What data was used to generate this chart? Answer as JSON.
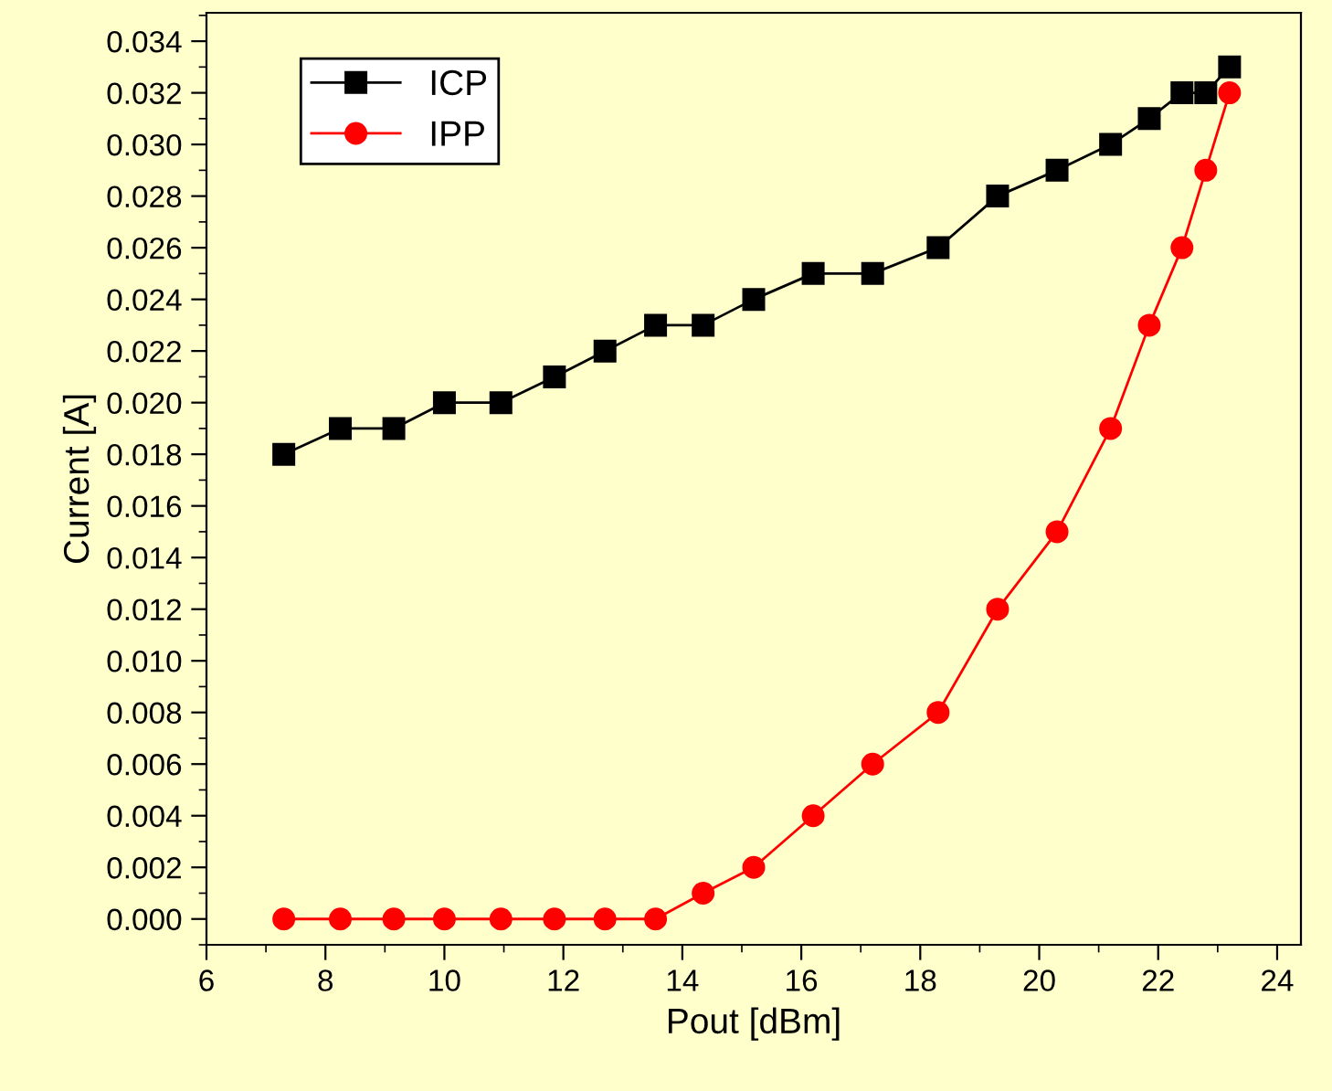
{
  "chart_data": {
    "type": "line",
    "xlabel": "Pout [dBm]",
    "ylabel": "Current [A]",
    "x": [
      7.3,
      8.25,
      9.15,
      10.0,
      10.95,
      11.85,
      12.7,
      13.55,
      14.35,
      15.2,
      16.2,
      17.2,
      18.3,
      19.3,
      20.3,
      21.2,
      21.85,
      22.4,
      22.8,
      23.2
    ],
    "series": [
      {
        "name": "ICP",
        "color": "#000000",
        "marker": "square",
        "values": [
          0.018,
          0.019,
          0.019,
          0.02,
          0.02,
          0.021,
          0.022,
          0.023,
          0.023,
          0.024,
          0.025,
          0.025,
          0.026,
          0.028,
          0.029,
          0.03,
          0.031,
          0.032,
          0.032,
          0.033
        ]
      },
      {
        "name": "IPP",
        "color": "#ff0000",
        "marker": "circle",
        "values": [
          0,
          0,
          0,
          0,
          0,
          0,
          0,
          0,
          0.001,
          0.002,
          0.004,
          0.006,
          0.008,
          0.012,
          0.015,
          0.019,
          0.023,
          0.026,
          0.029,
          0.032
        ]
      }
    ],
    "xlim": [
      6,
      24.4
    ],
    "xticks": [
      6,
      8,
      10,
      12,
      14,
      16,
      18,
      20,
      22,
      24
    ],
    "ylim": [
      -0.001,
      0.0351
    ],
    "yticks": [
      {
        "value": 0,
        "label": "0.000"
      },
      {
        "value": 0.002,
        "label": "0.002"
      },
      {
        "value": 0.004,
        "label": "0.004"
      },
      {
        "value": 0.006,
        "label": "0.006"
      },
      {
        "value": 0.008,
        "label": "0.008"
      },
      {
        "value": 0.01,
        "label": "0.010"
      },
      {
        "value": 0.012,
        "label": "0.012"
      },
      {
        "value": 0.014,
        "label": "0.014"
      },
      {
        "value": 0.016,
        "label": "0.016"
      },
      {
        "value": 0.018,
        "label": "0.018"
      },
      {
        "value": 0.02,
        "label": "0.020"
      },
      {
        "value": 0.022,
        "label": "0.022"
      },
      {
        "value": 0.024,
        "label": "0.024"
      },
      {
        "value": 0.026,
        "label": "0.026"
      },
      {
        "value": 0.028,
        "label": "0.028"
      },
      {
        "value": 0.03,
        "label": "0.030"
      },
      {
        "value": 0.032,
        "label": "0.032"
      },
      {
        "value": 0.034,
        "label": "0.034"
      }
    ],
    "legend": "top left",
    "grid": false,
    "line_style": "solid"
  }
}
